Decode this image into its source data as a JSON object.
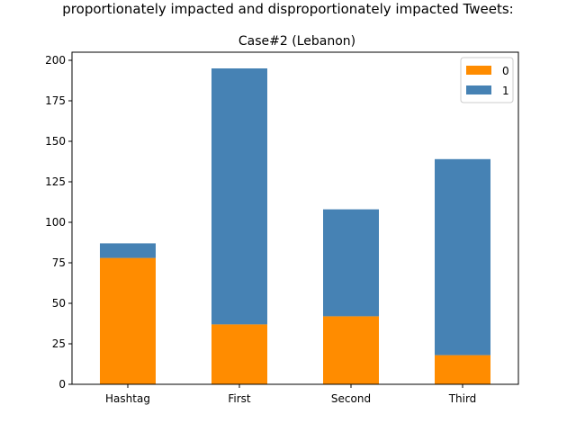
{
  "chart_data": {
    "type": "bar",
    "stacked": true,
    "suptitle": "proportionately impacted and disproportionately impacted Tweets:",
    "title": "Case#2 (Lebanon)",
    "xlabel": "",
    "ylabel": "",
    "categories": [
      "Hashtag",
      "First",
      "Second",
      "Third"
    ],
    "series": [
      {
        "name": "0",
        "color": "#ff8c00",
        "values": [
          78,
          37,
          42,
          18
        ]
      },
      {
        "name": "1",
        "color": "#4682b4",
        "values": [
          9,
          158,
          66,
          121
        ]
      }
    ],
    "ylim": [
      0,
      205
    ],
    "yticks": [
      0,
      25,
      50,
      75,
      100,
      125,
      150,
      175,
      200
    ],
    "grid": false,
    "legend": "top-right"
  }
}
